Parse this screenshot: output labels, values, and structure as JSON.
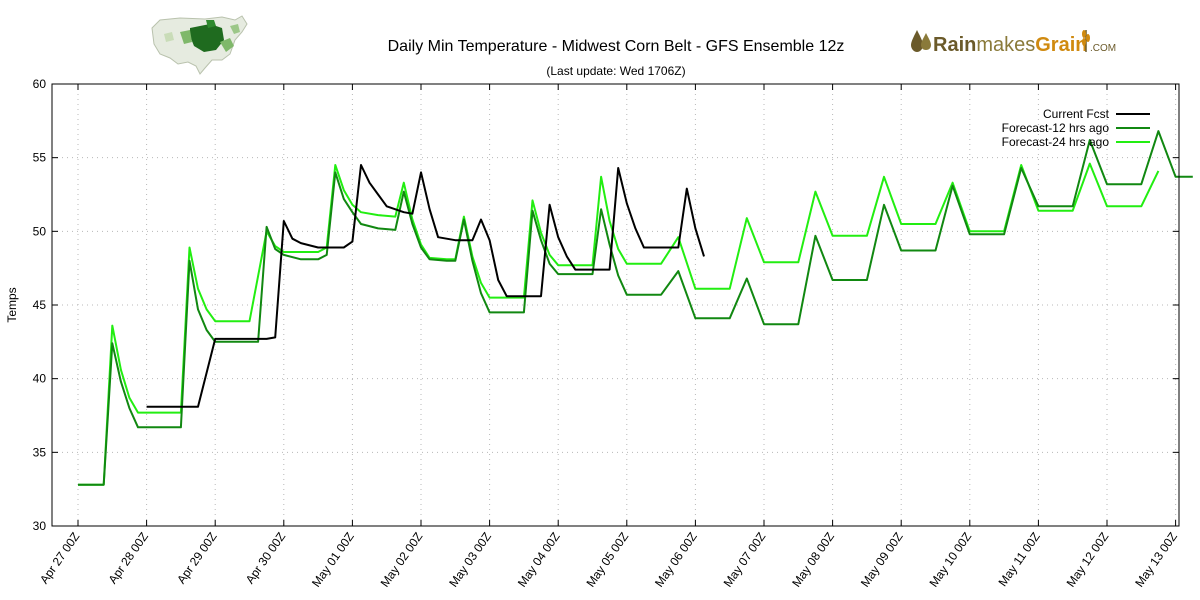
{
  "chart_data": {
    "type": "line",
    "title": "Daily Min Temperature - Midwest Corn Belt - GFS Ensemble 12z",
    "subtitle": "(Last update: Wed 1706Z)",
    "ylabel": "Temps",
    "xlabel": "",
    "ylim": [
      30,
      60
    ],
    "xlim": [
      0,
      16.4
    ],
    "yticks": [
      30,
      35,
      40,
      45,
      50,
      55,
      60
    ],
    "xticks": [
      {
        "pos": 0,
        "label": "Apr 27 00Z"
      },
      {
        "pos": 1,
        "label": "Apr 28 00Z"
      },
      {
        "pos": 2,
        "label": "Apr 29 00Z"
      },
      {
        "pos": 3,
        "label": "Apr 30 00Z"
      },
      {
        "pos": 4,
        "label": "May 01 00Z"
      },
      {
        "pos": 5,
        "label": "May 02 00Z"
      },
      {
        "pos": 6,
        "label": "May 03 00Z"
      },
      {
        "pos": 7,
        "label": "May 04 00Z"
      },
      {
        "pos": 8,
        "label": "May 05 00Z"
      },
      {
        "pos": 9,
        "label": "May 06 00Z"
      },
      {
        "pos": 10,
        "label": "May 07 00Z"
      },
      {
        "pos": 11,
        "label": "May 08 00Z"
      },
      {
        "pos": 12,
        "label": "May 09 00Z"
      },
      {
        "pos": 13,
        "label": "May 10 00Z"
      },
      {
        "pos": 14,
        "label": "May 11 00Z"
      },
      {
        "pos": 15,
        "label": "May 12 00Z"
      },
      {
        "pos": 16,
        "label": "May 13 00Z"
      }
    ],
    "grid": true,
    "legend_position": "top-right",
    "series": [
      {
        "name": "Current Fcst",
        "color": "#000000",
        "points": [
          [
            1.0,
            38.1
          ],
          [
            1.25,
            38.1
          ],
          [
            1.5,
            38.1
          ],
          [
            1.75,
            38.1
          ],
          [
            2.0,
            42.7
          ],
          [
            2.25,
            42.7
          ],
          [
            2.5,
            42.7
          ],
          [
            2.75,
            42.7
          ],
          [
            2.875,
            42.8
          ],
          [
            3.0,
            50.7
          ],
          [
            3.125,
            49.5
          ],
          [
            3.25,
            49.2
          ],
          [
            3.5,
            48.9
          ],
          [
            3.75,
            48.9
          ],
          [
            3.875,
            48.9
          ],
          [
            4.0,
            49.3
          ],
          [
            4.125,
            54.5
          ],
          [
            4.25,
            53.3
          ],
          [
            4.375,
            52.5
          ],
          [
            4.5,
            51.7
          ],
          [
            4.75,
            51.3
          ],
          [
            4.875,
            51.2
          ],
          [
            5.0,
            54.0
          ],
          [
            5.125,
            51.5
          ],
          [
            5.25,
            49.6
          ],
          [
            5.5,
            49.4
          ],
          [
            5.75,
            49.4
          ],
          [
            5.875,
            50.8
          ],
          [
            6.0,
            49.4
          ],
          [
            6.125,
            46.7
          ],
          [
            6.25,
            45.6
          ],
          [
            6.5,
            45.6
          ],
          [
            6.75,
            45.6
          ],
          [
            6.875,
            51.8
          ],
          [
            7.0,
            49.6
          ],
          [
            7.125,
            48.3
          ],
          [
            7.25,
            47.4
          ],
          [
            7.5,
            47.4
          ],
          [
            7.75,
            47.4
          ],
          [
            7.875,
            54.3
          ],
          [
            8.0,
            51.9
          ],
          [
            8.125,
            50.2
          ],
          [
            8.25,
            48.9
          ],
          [
            8.5,
            48.9
          ],
          [
            8.75,
            48.9
          ],
          [
            8.875,
            52.9
          ],
          [
            9.0,
            50.2
          ],
          [
            9.125,
            48.3
          ]
        ]
      },
      {
        "name": "Forecast-12 hrs ago",
        "color": "#118811",
        "points": [
          [
            0.0,
            32.8
          ],
          [
            0.375,
            32.8
          ],
          [
            0.5,
            42.4
          ],
          [
            0.625,
            39.8
          ],
          [
            0.75,
            38.0
          ],
          [
            0.875,
            36.7
          ],
          [
            1.0,
            36.7
          ],
          [
            1.25,
            36.7
          ],
          [
            1.5,
            36.7
          ],
          [
            1.625,
            48.0
          ],
          [
            1.75,
            44.7
          ],
          [
            1.875,
            43.3
          ],
          [
            2.0,
            42.5
          ],
          [
            2.25,
            42.5
          ],
          [
            2.5,
            42.5
          ],
          [
            2.625,
            42.5
          ],
          [
            2.75,
            50.3
          ],
          [
            2.875,
            48.8
          ],
          [
            3.0,
            48.4
          ],
          [
            3.25,
            48.1
          ],
          [
            3.5,
            48.1
          ],
          [
            3.625,
            48.4
          ],
          [
            3.75,
            54.0
          ],
          [
            3.875,
            52.2
          ],
          [
            4.0,
            51.3
          ],
          [
            4.125,
            50.5
          ],
          [
            4.375,
            50.2
          ],
          [
            4.625,
            50.1
          ],
          [
            4.75,
            52.7
          ],
          [
            4.875,
            50.5
          ],
          [
            5.0,
            48.9
          ],
          [
            5.125,
            48.1
          ],
          [
            5.375,
            48.0
          ],
          [
            5.5,
            48.0
          ],
          [
            5.625,
            50.8
          ],
          [
            5.75,
            48.0
          ],
          [
            5.875,
            45.8
          ],
          [
            6.0,
            44.5
          ],
          [
            6.25,
            44.5
          ],
          [
            6.5,
            44.5
          ],
          [
            6.625,
            51.4
          ],
          [
            6.75,
            49.4
          ],
          [
            6.875,
            47.8
          ],
          [
            7.0,
            47.1
          ],
          [
            7.25,
            47.1
          ],
          [
            7.5,
            47.1
          ],
          [
            7.625,
            51.5
          ],
          [
            7.75,
            49.1
          ],
          [
            7.875,
            47.0
          ],
          [
            8.0,
            45.7
          ],
          [
            8.25,
            45.7
          ],
          [
            8.5,
            45.7
          ],
          [
            8.75,
            47.3
          ],
          [
            9.0,
            44.1
          ],
          [
            9.25,
            44.1
          ],
          [
            9.5,
            44.1
          ],
          [
            9.75,
            46.8
          ],
          [
            10.0,
            43.7
          ],
          [
            10.25,
            43.7
          ],
          [
            10.5,
            43.7
          ],
          [
            10.75,
            49.7
          ],
          [
            11.0,
            46.7
          ],
          [
            11.25,
            46.7
          ],
          [
            11.5,
            46.7
          ],
          [
            11.75,
            51.8
          ],
          [
            12.0,
            48.7
          ],
          [
            12.25,
            48.7
          ],
          [
            12.5,
            48.7
          ],
          [
            12.75,
            53.1
          ],
          [
            13.0,
            49.8
          ],
          [
            13.25,
            49.8
          ],
          [
            13.5,
            49.8
          ],
          [
            13.75,
            54.3
          ],
          [
            14.0,
            51.7
          ],
          [
            14.25,
            51.7
          ],
          [
            14.5,
            51.7
          ],
          [
            14.75,
            56.2
          ],
          [
            15.0,
            53.2
          ],
          [
            15.25,
            53.2
          ],
          [
            15.5,
            53.2
          ],
          [
            15.75,
            56.8
          ],
          [
            16.0,
            53.7
          ],
          [
            16.25,
            53.7
          ]
        ]
      },
      {
        "name": "Forecast-24 hrs ago",
        "color": "#22ee11",
        "points": [
          [
            0.0,
            32.8
          ],
          [
            0.375,
            32.8
          ],
          [
            0.5,
            43.6
          ],
          [
            0.625,
            40.6
          ],
          [
            0.75,
            38.7
          ],
          [
            0.875,
            37.7
          ],
          [
            1.0,
            37.7
          ],
          [
            1.25,
            37.7
          ],
          [
            1.5,
            37.7
          ],
          [
            1.625,
            48.9
          ],
          [
            1.75,
            46.1
          ],
          [
            1.875,
            44.7
          ],
          [
            2.0,
            43.9
          ],
          [
            2.25,
            43.9
          ],
          [
            2.5,
            43.9
          ],
          [
            2.75,
            50.0
          ],
          [
            2.875,
            49.0
          ],
          [
            3.0,
            48.6
          ],
          [
            3.25,
            48.6
          ],
          [
            3.5,
            48.6
          ],
          [
            3.625,
            48.9
          ],
          [
            3.75,
            54.5
          ],
          [
            3.875,
            52.8
          ],
          [
            4.0,
            51.8
          ],
          [
            4.125,
            51.3
          ],
          [
            4.375,
            51.1
          ],
          [
            4.625,
            51.0
          ],
          [
            4.75,
            53.3
          ],
          [
            4.875,
            50.8
          ],
          [
            5.0,
            49.1
          ],
          [
            5.125,
            48.2
          ],
          [
            5.375,
            48.1
          ],
          [
            5.5,
            48.1
          ],
          [
            5.625,
            51.0
          ],
          [
            5.75,
            48.3
          ],
          [
            5.875,
            46.5
          ],
          [
            6.0,
            45.5
          ],
          [
            6.25,
            45.5
          ],
          [
            6.5,
            45.5
          ],
          [
            6.625,
            52.1
          ],
          [
            6.75,
            49.9
          ],
          [
            6.875,
            48.4
          ],
          [
            7.0,
            47.7
          ],
          [
            7.25,
            47.7
          ],
          [
            7.5,
            47.7
          ],
          [
            7.625,
            53.7
          ],
          [
            7.75,
            50.7
          ],
          [
            7.875,
            48.8
          ],
          [
            8.0,
            47.8
          ],
          [
            8.25,
            47.8
          ],
          [
            8.5,
            47.8
          ],
          [
            8.75,
            49.6
          ],
          [
            9.0,
            46.1
          ],
          [
            9.25,
            46.1
          ],
          [
            9.5,
            46.1
          ],
          [
            9.75,
            50.9
          ],
          [
            10.0,
            47.9
          ],
          [
            10.25,
            47.9
          ],
          [
            10.5,
            47.9
          ],
          [
            10.75,
            52.7
          ],
          [
            11.0,
            49.7
          ],
          [
            11.25,
            49.7
          ],
          [
            11.5,
            49.7
          ],
          [
            11.75,
            53.7
          ],
          [
            12.0,
            50.5
          ],
          [
            12.25,
            50.5
          ],
          [
            12.5,
            50.5
          ],
          [
            12.75,
            53.3
          ],
          [
            13.0,
            50.0
          ],
          [
            13.25,
            50.0
          ],
          [
            13.5,
            50.0
          ],
          [
            13.75,
            54.5
          ],
          [
            14.0,
            51.4
          ],
          [
            14.25,
            51.4
          ],
          [
            14.5,
            51.4
          ],
          [
            14.75,
            54.6
          ],
          [
            15.0,
            51.7
          ],
          [
            15.25,
            51.7
          ],
          [
            15.5,
            51.7
          ],
          [
            15.75,
            54.1
          ]
        ]
      }
    ]
  },
  "branding": {
    "logo_part1": "Rain",
    "logo_part2": "makes",
    "logo_part3": "Grain",
    "logo_suffix": ".COM",
    "map_icon": "us-corn-belt-map-icon",
    "drops_icon": "rain-drops-icon",
    "wheat_icon": "wheat-stalk-icon",
    "colors": {
      "brown": "#6b5a2a",
      "gold": "#d08a10",
      "map_green": "#1f6b1f"
    }
  }
}
